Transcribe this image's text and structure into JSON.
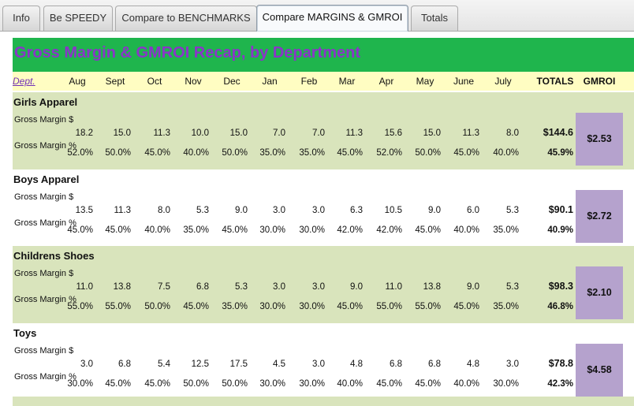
{
  "tabs": [
    {
      "label": "Info",
      "active": false
    },
    {
      "label": "Be SPEEDY",
      "active": false
    },
    {
      "label": "Compare to BENCHMARKS",
      "active": false
    },
    {
      "label": "Compare MARGINS & GMROI",
      "active": true
    },
    {
      "label": "Totals",
      "active": false
    }
  ],
  "title": "Gross Margin & GMROI Recap, by Department",
  "header": {
    "dept": "Dept.",
    "months": [
      "Aug",
      "Sept",
      "Oct",
      "Nov",
      "Dec",
      "Jan",
      "Feb",
      "Mar",
      "Apr",
      "May",
      "June",
      "July"
    ],
    "totals": "TOTALS",
    "gmroi": "GMROI"
  },
  "row_labels": {
    "gm_dollar": "Gross Margin $",
    "gm_pct": "Gross Margin %"
  },
  "departments": [
    {
      "name": "Girls Apparel",
      "gm_dollar": [
        "18.2",
        "15.0",
        "11.3",
        "10.0",
        "15.0",
        "7.0",
        "7.0",
        "11.3",
        "15.6",
        "15.0",
        "11.3",
        "8.0"
      ],
      "gm_pct": [
        "52.0%",
        "50.0%",
        "45.0%",
        "40.0%",
        "50.0%",
        "35.0%",
        "35.0%",
        "45.0%",
        "52.0%",
        "50.0%",
        "45.0%",
        "40.0%"
      ],
      "total_dollar": "$144.6",
      "total_pct": "45.9%",
      "gmroi": "$2.53"
    },
    {
      "name": "Boys Apparel",
      "gm_dollar": [
        "13.5",
        "11.3",
        "8.0",
        "5.3",
        "9.0",
        "3.0",
        "3.0",
        "6.3",
        "10.5",
        "9.0",
        "6.0",
        "5.3"
      ],
      "gm_pct": [
        "45.0%",
        "45.0%",
        "40.0%",
        "35.0%",
        "45.0%",
        "30.0%",
        "30.0%",
        "42.0%",
        "42.0%",
        "45.0%",
        "40.0%",
        "35.0%"
      ],
      "total_dollar": "$90.1",
      "total_pct": "40.9%",
      "gmroi": "$2.72"
    },
    {
      "name": "Childrens Shoes",
      "gm_dollar": [
        "11.0",
        "13.8",
        "7.5",
        "6.8",
        "5.3",
        "3.0",
        "3.0",
        "9.0",
        "11.0",
        "13.8",
        "9.0",
        "5.3"
      ],
      "gm_pct": [
        "55.0%",
        "55.0%",
        "50.0%",
        "45.0%",
        "35.0%",
        "30.0%",
        "30.0%",
        "45.0%",
        "55.0%",
        "55.0%",
        "45.0%",
        "35.0%"
      ],
      "total_dollar": "$98.3",
      "total_pct": "46.8%",
      "gmroi": "$2.10"
    },
    {
      "name": "Toys",
      "gm_dollar": [
        "3.0",
        "6.8",
        "5.4",
        "12.5",
        "17.5",
        "4.5",
        "3.0",
        "4.8",
        "6.8",
        "6.8",
        "4.8",
        "3.0"
      ],
      "gm_pct": [
        "30.0%",
        "45.0%",
        "45.0%",
        "50.0%",
        "50.0%",
        "30.0%",
        "30.0%",
        "40.0%",
        "45.0%",
        "45.0%",
        "40.0%",
        "30.0%"
      ],
      "total_dollar": "$78.8",
      "total_pct": "42.3%",
      "gmroi": "$4.58"
    }
  ],
  "colors": {
    "title_bar": "#1fb54d",
    "title_text": "#8a35c9",
    "header_row": "#fffdc2",
    "band_green": "#d9e4bc",
    "gmroi_box": "#b5a2cd"
  }
}
